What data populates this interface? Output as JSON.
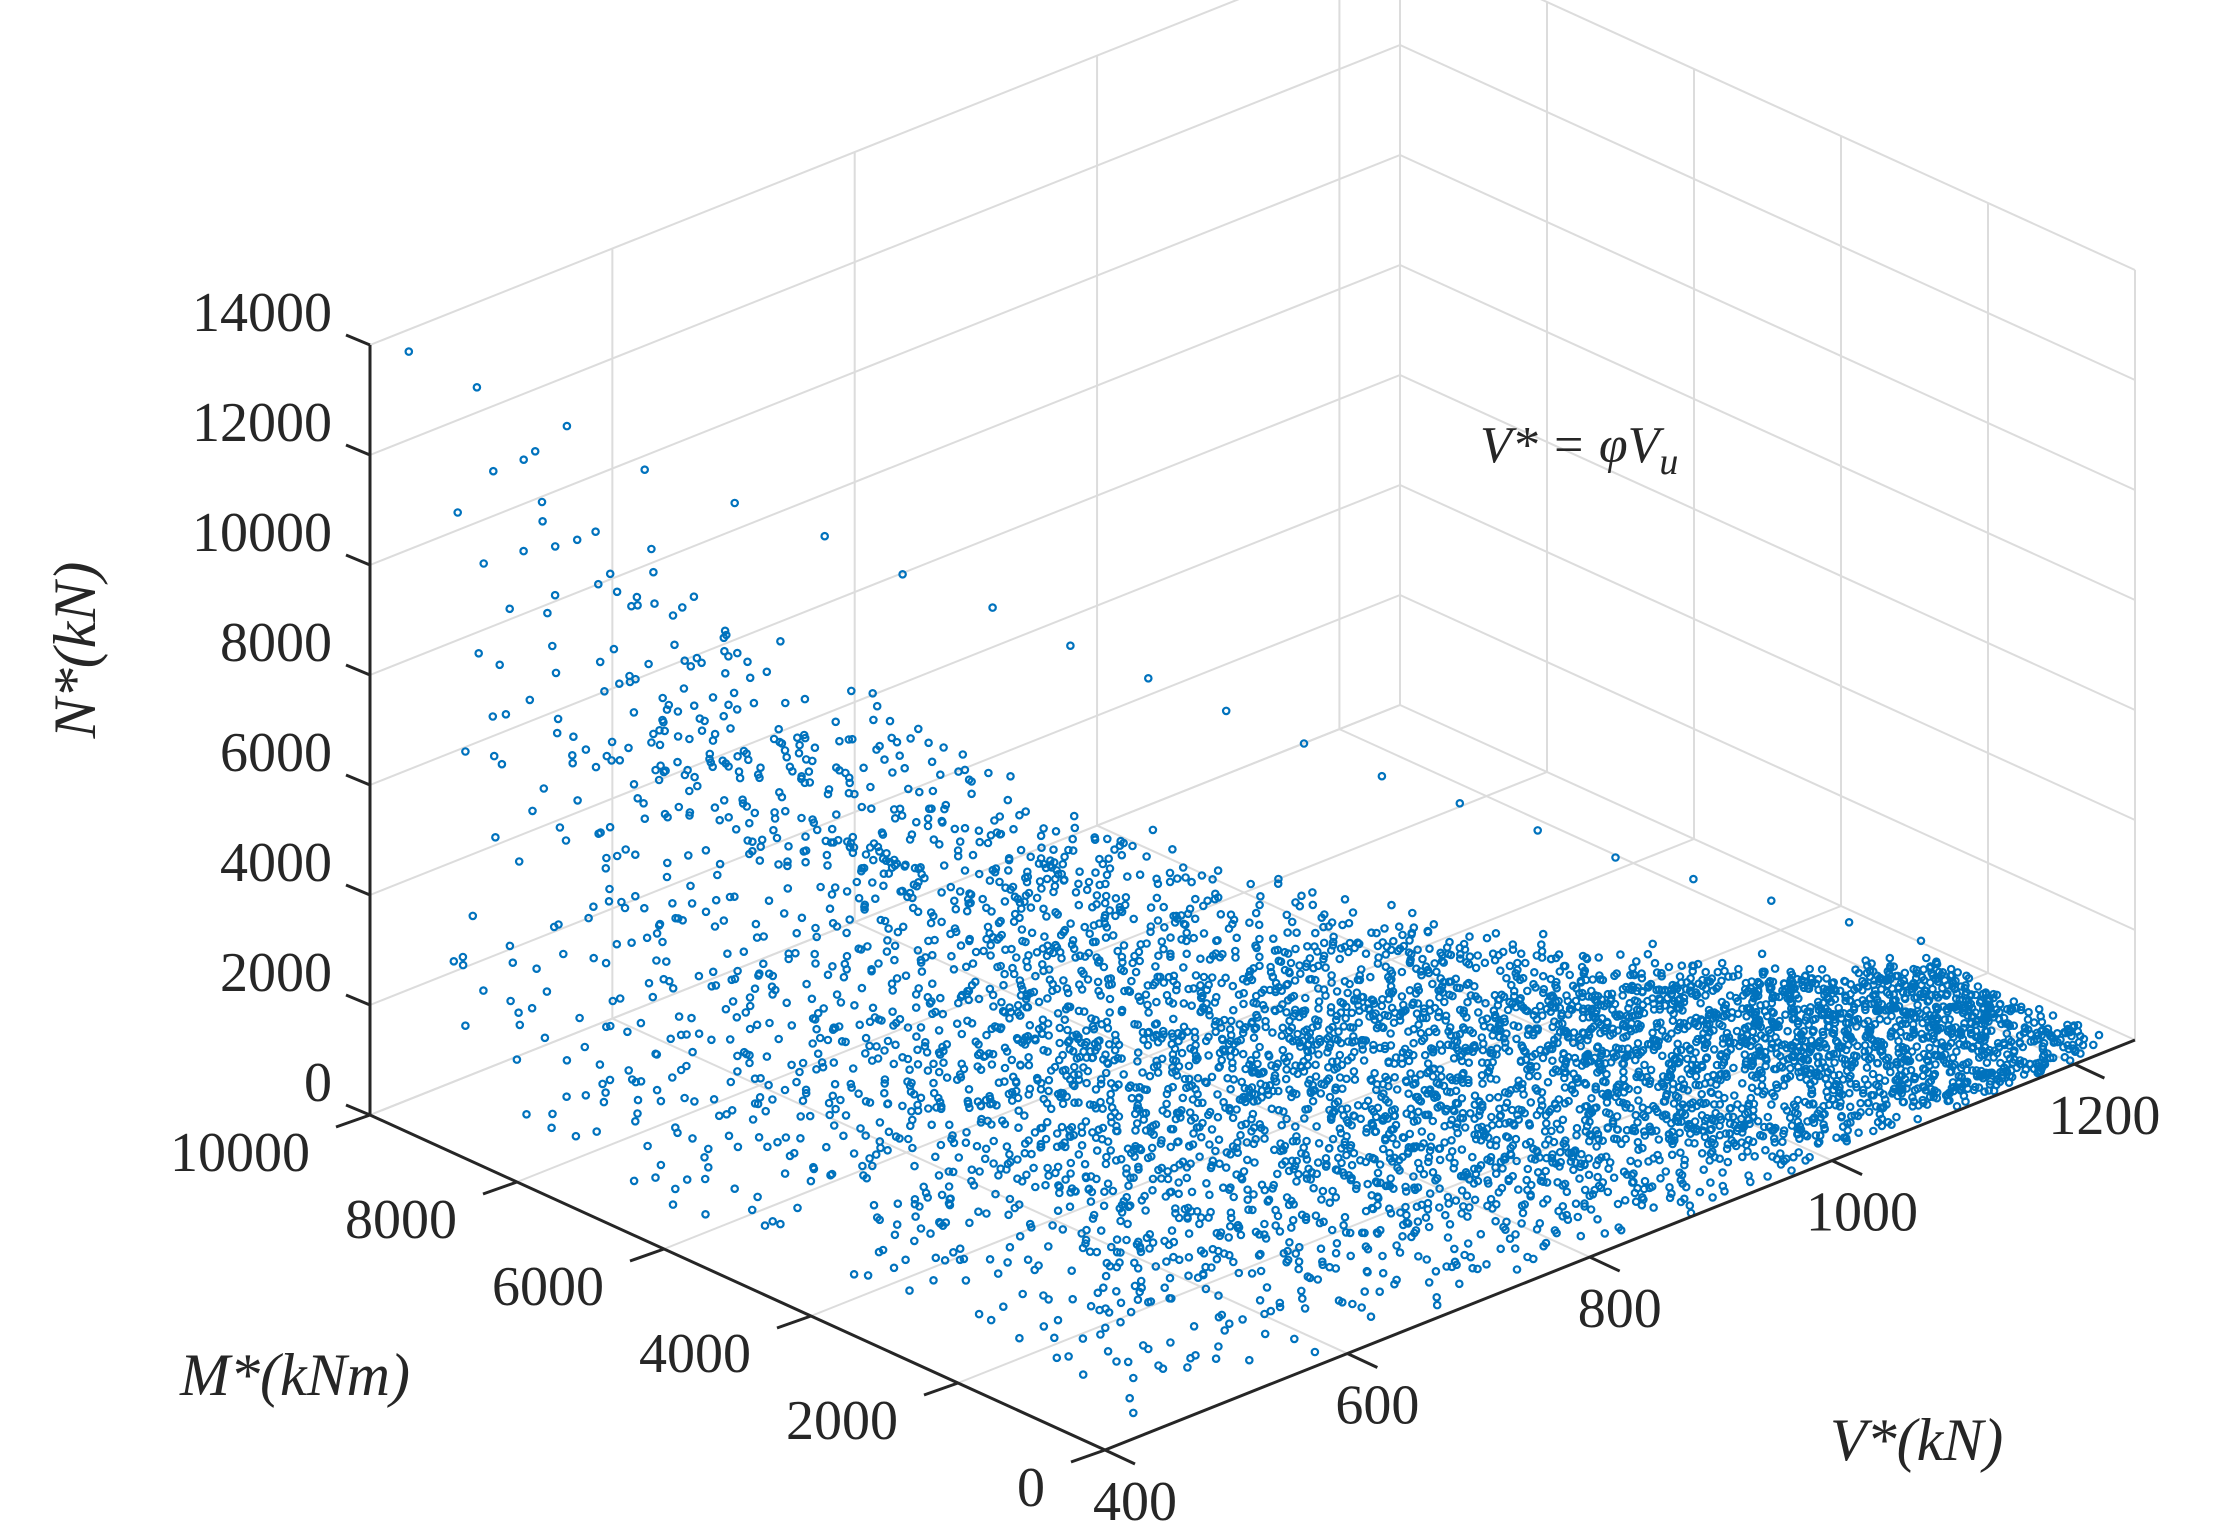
{
  "chart_data": {
    "type": "scatter",
    "dimensions": 3,
    "title": "",
    "xlabel": "V*(kN)",
    "ylabel": "M*(kNm)",
    "zlabel": "N*(kN)",
    "xlim": [
      400,
      1250
    ],
    "ylim": [
      0,
      10000
    ],
    "zlim": [
      0,
      14000
    ],
    "xticks": [
      "400",
      "600",
      "800",
      "1000",
      "1200"
    ],
    "yticks": [
      "0",
      "2000",
      "4000",
      "6000",
      "8000",
      "10000"
    ],
    "zticks": [
      "0",
      "2000",
      "4000",
      "6000",
      "8000",
      "10000",
      "12000",
      "14000"
    ],
    "grid": true,
    "marker": "o",
    "color": "#0072bd",
    "annotation": "V* = φV",
    "annotation_subscript": "u",
    "series": [
      {
        "x": [
          432,
          470,
          520,
          560,
          610,
          660,
          700,
          750,
          790,
          830,
          870,
          910,
          950,
          990,
          1030,
          1070,
          1110,
          1150,
          1190,
          1225,
          450,
          500,
          560,
          620,
          680,
          740,
          800,
          860,
          920,
          980,
          1040,
          1100,
          1160,
          1210,
          460,
          540,
          620,
          700,
          780,
          860,
          940,
          1020,
          1100,
          1180
        ],
        "y": [
          10000,
          9700,
          9300,
          8900,
          8500,
          8100,
          7700,
          7300,
          6900,
          6500,
          6100,
          5700,
          5300,
          4900,
          4500,
          4100,
          3700,
          3300,
          2900,
          2500,
          8000,
          7600,
          7100,
          6600,
          6100,
          5600,
          5100,
          4600,
          4100,
          3600,
          3100,
          2600,
          2100,
          1600,
          5000,
          4600,
          4200,
          3800,
          3400,
          3000,
          2600,
          2200,
          1800,
          1400
        ],
        "z": [
          13600,
          12800,
          11900,
          11000,
          10200,
          9400,
          8600,
          7800,
          7000,
          6300,
          5600,
          4900,
          4200,
          3600,
          3000,
          2400,
          1900,
          1400,
          900,
          500,
          6500,
          6000,
          5400,
          4900,
          4400,
          3900,
          3400,
          2900,
          2500,
          2100,
          1700,
          1300,
          900,
          500,
          2500,
          2200,
          2000,
          1800,
          1600,
          1400,
          1200,
          1000,
          800,
          600
        ]
      }
    ]
  }
}
